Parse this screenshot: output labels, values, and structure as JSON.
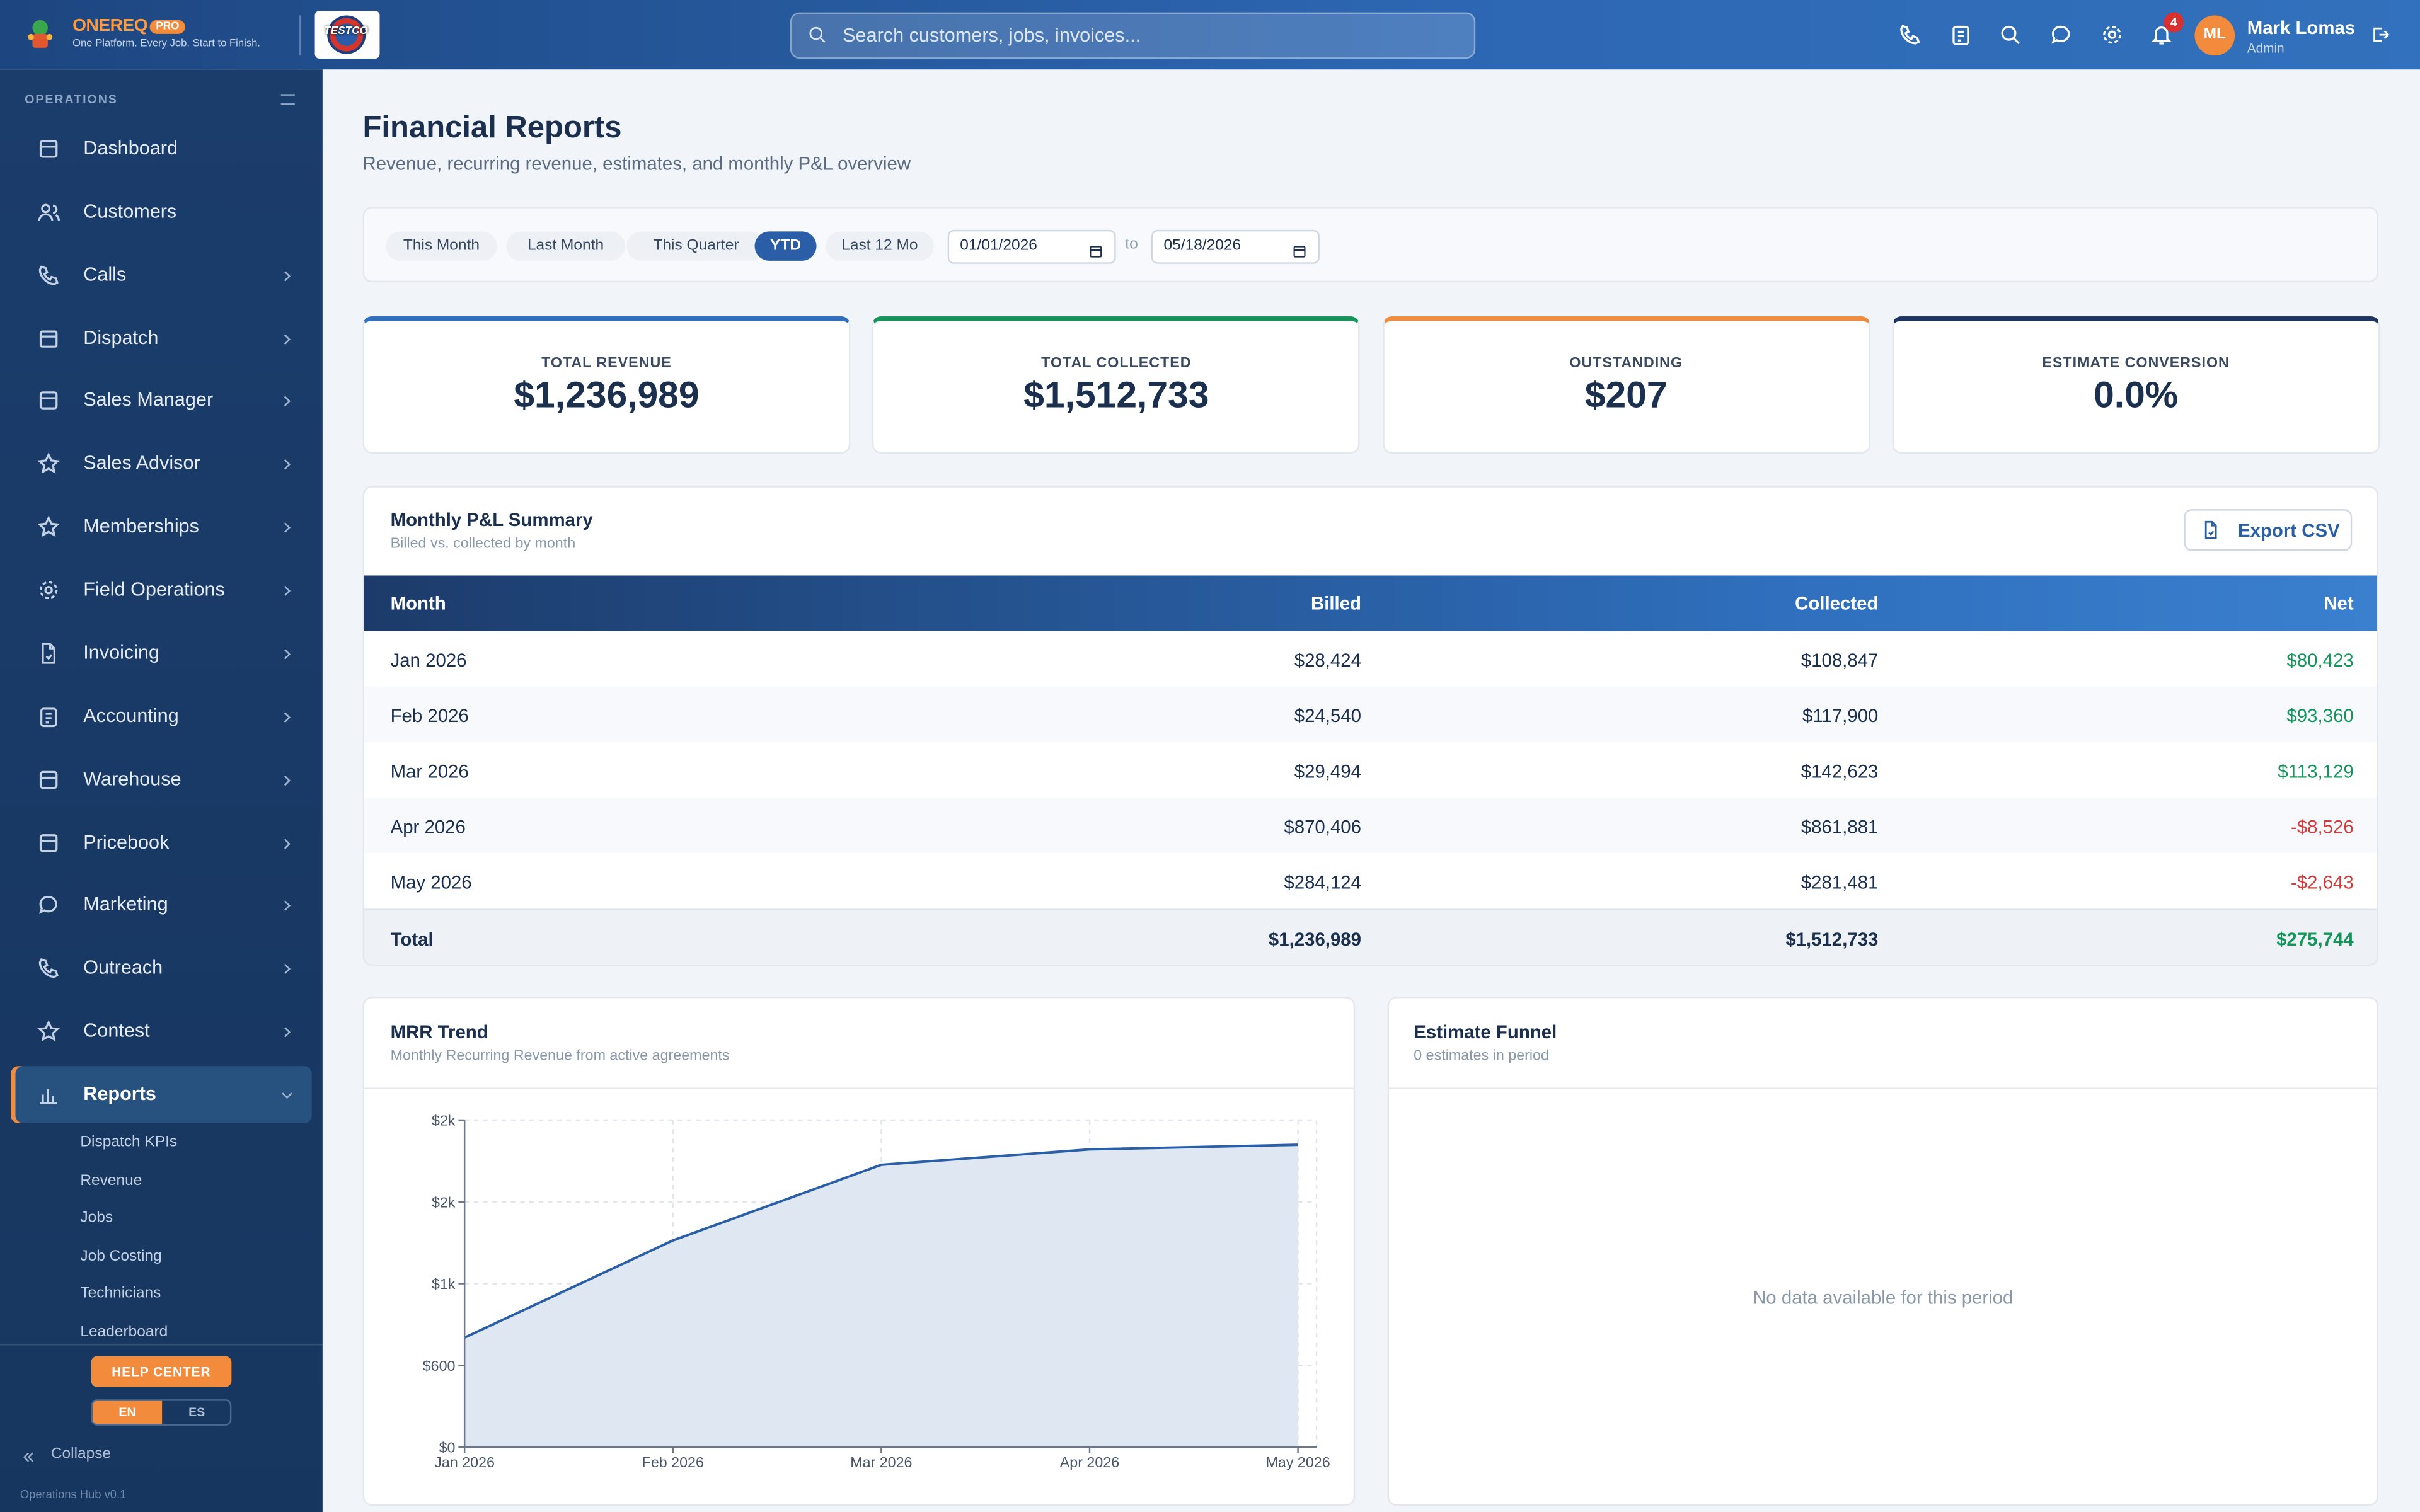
{
  "header": {
    "brand": "ONEREQ",
    "badge": "PRO",
    "tagline": "One Platform. Every Job. Start to Finish.",
    "logo_text": "TESTCO",
    "search_placeholder": "Search customers, jobs, invoices...",
    "notifications": "4",
    "user_initials": "ML",
    "user_name": "Mark Lomas",
    "user_role": "Admin"
  },
  "sidebar": {
    "section": "OPERATIONS",
    "items": [
      {
        "label": "Dashboard",
        "expandable": false
      },
      {
        "label": "Customers",
        "expandable": false
      },
      {
        "label": "Calls",
        "expandable": true
      },
      {
        "label": "Dispatch",
        "expandable": true
      },
      {
        "label": "Sales Manager",
        "expandable": true
      },
      {
        "label": "Sales Advisor",
        "expandable": true
      },
      {
        "label": "Memberships",
        "expandable": true
      },
      {
        "label": "Field Operations",
        "expandable": true
      },
      {
        "label": "Invoicing",
        "expandable": true
      },
      {
        "label": "Accounting",
        "expandable": true
      },
      {
        "label": "Warehouse",
        "expandable": true
      },
      {
        "label": "Pricebook",
        "expandable": true
      },
      {
        "label": "Marketing",
        "expandable": true
      },
      {
        "label": "Outreach",
        "expandable": true
      },
      {
        "label": "Contest",
        "expandable": true
      },
      {
        "label": "Reports",
        "expandable": true,
        "active": true
      }
    ],
    "subitems": [
      "Dispatch KPIs",
      "Revenue",
      "Jobs",
      "Job Costing",
      "Technicians",
      "Leaderboard"
    ],
    "help": "HELP CENTER",
    "languages": [
      {
        "label": "EN",
        "active": true
      },
      {
        "label": "ES",
        "active": false
      }
    ],
    "collapse": "Collapse",
    "version": "Operations Hub v0.1"
  },
  "page": {
    "title": "Financial Reports",
    "subtitle": "Revenue, recurring revenue, estimates, and monthly P&L overview",
    "filters": [
      {
        "label": "This Month",
        "active": false
      },
      {
        "label": "Last Month",
        "active": false
      },
      {
        "label": "This Quarter",
        "active": false
      },
      {
        "label": "YTD",
        "active": true
      },
      {
        "label": "Last 12 Mo",
        "active": false
      }
    ],
    "date_from": "01/01/2026",
    "date_sep": "to",
    "date_to": "05/18/2026"
  },
  "kpis": [
    {
      "label": "TOTAL REVENUE",
      "value": "$1,236,989",
      "color": "#2f6fbf"
    },
    {
      "label": "TOTAL COLLECTED",
      "value": "$1,512,733",
      "color": "#14965a"
    },
    {
      "label": "OUTSTANDING",
      "value": "$207",
      "color": "#f28c3c"
    },
    {
      "label": "ESTIMATE CONVERSION",
      "value": "0.0%",
      "color": "#1e3563"
    }
  ],
  "table": {
    "title": "Monthly P&L Summary",
    "subtitle": "Billed vs. collected by month",
    "export": "Export CSV",
    "columns": [
      "Month",
      "Billed",
      "Collected",
      "Net"
    ],
    "rows": [
      [
        "Jan 2026",
        "$28,424",
        "$108,847",
        "$80,423"
      ],
      [
        "Feb 2026",
        "$24,540",
        "$117,900",
        "$93,360"
      ],
      [
        "Mar 2026",
        "$29,494",
        "$142,623",
        "$113,129"
      ],
      [
        "Apr 2026",
        "$870,406",
        "$861,881",
        "-$8,526"
      ],
      [
        "May 2026",
        "$284,124",
        "$281,481",
        "-$2,643"
      ]
    ],
    "total": [
      "Total",
      "$1,236,989",
      "$1,512,733",
      "$275,744"
    ]
  },
  "funnel": {
    "title": "Estimate Funnel",
    "subtitle": "0 estimates in period",
    "empty": "No data available for this period"
  },
  "chart_data": {
    "type": "line",
    "title": "MRR Trend",
    "subtitle": "Monthly Recurring Revenue from active agreements",
    "categories": [
      "Jan 2026",
      "Feb 2026",
      "Mar 2026",
      "Apr 2026",
      "May 2026"
    ],
    "values": [
      804,
      1517,
      2072,
      2185,
      2219
    ],
    "color": "#2a5fa8",
    "fill": "#dfe7f2",
    "ylim": [
      0,
      2400
    ],
    "yticks": [
      {
        "value": 0,
        "label": "$0"
      },
      {
        "value": 600,
        "label": "$600"
      },
      {
        "value": 1200,
        "label": "$1k"
      },
      {
        "value": 1800,
        "label": "$2k"
      },
      {
        "value": 2400,
        "label": "$2k"
      }
    ],
    "grid": true
  }
}
